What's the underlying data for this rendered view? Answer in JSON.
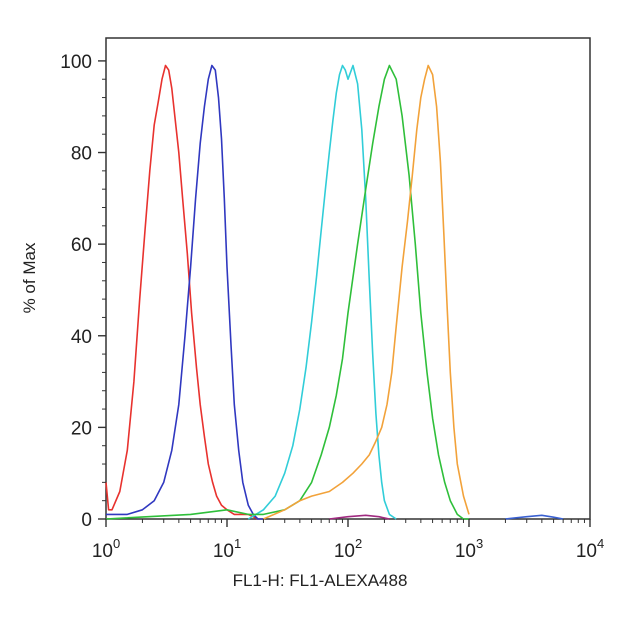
{
  "chart_data": {
    "type": "line",
    "title": "",
    "xlabel": "FL1-H: FL1-ALEXA488",
    "ylabel": "% of Max",
    "x_scale": "log",
    "xlim": [
      1,
      10000
    ],
    "ylim": [
      0,
      105
    ],
    "grid": false,
    "legend": "none",
    "x_ticks": [
      {
        "value": 1,
        "base": "10",
        "exp": "0"
      },
      {
        "value": 10,
        "base": "10",
        "exp": "1"
      },
      {
        "value": 100,
        "base": "10",
        "exp": "2"
      },
      {
        "value": 1000,
        "base": "10",
        "exp": "3"
      },
      {
        "value": 10000,
        "base": "10",
        "exp": "4"
      }
    ],
    "y_ticks": [
      "0",
      "20",
      "40",
      "60",
      "80",
      "100"
    ],
    "series": [
      {
        "color": "#e8322e",
        "x": [
          1.0,
          1.05,
          1.12,
          1.3,
          1.5,
          1.7,
          1.9,
          2.1,
          2.3,
          2.5,
          2.7,
          2.9,
          3.1,
          3.3,
          3.5,
          3.7,
          4.0,
          4.3,
          4.7,
          5.1,
          5.6,
          6.0,
          6.5,
          7.0,
          7.6,
          8.2,
          9.0,
          10.0,
          11.5,
          13.0,
          15.0,
          18.0
        ],
        "y": [
          8,
          2,
          2,
          6,
          15,
          30,
          48,
          63,
          76,
          86,
          91,
          96,
          99,
          98,
          94,
          88,
          80,
          70,
          58,
          45,
          33,
          25,
          18,
          12,
          8,
          5,
          3,
          2,
          1,
          1,
          1,
          0
        ]
      },
      {
        "color": "#3038c0",
        "x": [
          1.0,
          1.5,
          2.0,
          2.5,
          3.0,
          3.5,
          4.0,
          4.5,
          5.0,
          5.5,
          6.0,
          6.5,
          7.0,
          7.5,
          8.0,
          8.5,
          9.0,
          9.5,
          10.0,
          10.8,
          11.5,
          12.5,
          13.5,
          15.0,
          16.5,
          18.0,
          20.0
        ],
        "y": [
          1,
          1,
          2,
          4,
          8,
          15,
          25,
          40,
          55,
          70,
          82,
          90,
          96,
          99,
          98,
          92,
          83,
          70,
          55,
          38,
          25,
          15,
          8,
          3,
          1,
          0,
          0
        ]
      },
      {
        "color": "#31cdd8",
        "x": [
          15,
          20,
          25,
          30,
          35,
          40,
          45,
          50,
          55,
          60,
          65,
          70,
          75,
          80,
          85,
          90,
          95,
          100,
          110,
          120,
          130,
          140,
          150,
          160,
          170,
          180,
          190,
          200,
          220,
          250
        ],
        "y": [
          0,
          2,
          5,
          10,
          16,
          24,
          33,
          43,
          53,
          63,
          72,
          80,
          87,
          93,
          97,
          99,
          98,
          96,
          99,
          95,
          85,
          70,
          52,
          36,
          23,
          14,
          8,
          4,
          1,
          0
        ]
      },
      {
        "color": "#2fbf3a",
        "x": [
          1.0,
          5,
          10,
          15,
          20,
          30,
          40,
          50,
          60,
          70,
          80,
          90,
          100,
          120,
          140,
          160,
          180,
          200,
          220,
          250,
          280,
          320,
          360,
          400,
          450,
          500,
          560,
          630,
          700,
          800,
          900,
          1000
        ],
        "y": [
          0,
          1,
          2,
          1,
          1,
          2,
          4,
          8,
          14,
          20,
          27,
          35,
          45,
          60,
          72,
          82,
          90,
          96,
          99,
          96,
          88,
          75,
          60,
          45,
          32,
          22,
          14,
          8,
          4,
          1,
          0,
          0
        ]
      },
      {
        "color": "#f2a23a",
        "x": [
          20,
          30,
          40,
          50,
          70,
          90,
          110,
          130,
          150,
          170,
          190,
          210,
          230,
          250,
          280,
          310,
          340,
          370,
          400,
          430,
          460,
          500,
          540,
          580,
          620,
          660,
          700,
          750,
          800,
          900,
          1000
        ],
        "y": [
          0,
          2,
          4,
          5,
          6,
          8,
          10,
          12,
          14,
          17,
          20,
          25,
          32,
          42,
          55,
          65,
          75,
          85,
          92,
          96,
          99,
          97,
          90,
          78,
          62,
          46,
          32,
          20,
          12,
          5,
          1
        ]
      },
      {
        "color": "#a02a80",
        "x": [
          70,
          100,
          140,
          180,
          220
        ],
        "y": [
          0,
          0.5,
          0.8,
          0.5,
          0
        ]
      },
      {
        "color": "#3a60d0",
        "x": [
          2000,
          3000,
          4000,
          5000,
          6000
        ],
        "y": [
          0,
          0.5,
          0.8,
          0.4,
          0
        ]
      }
    ]
  }
}
